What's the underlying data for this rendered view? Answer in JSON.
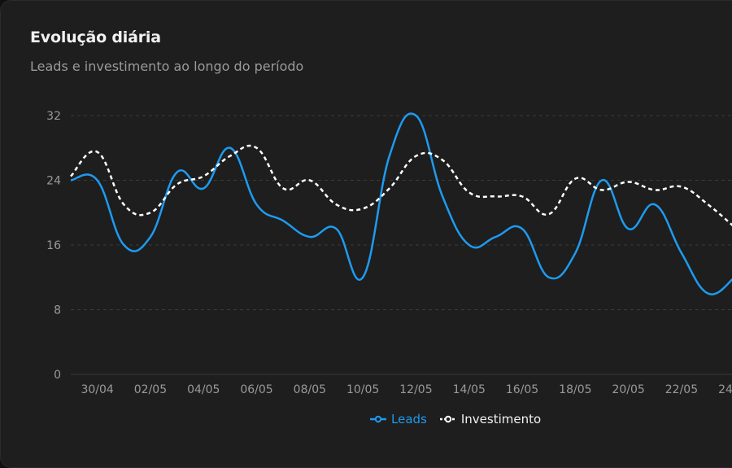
{
  "header": {
    "title": "Evolução diária",
    "subtitle": "Leads e investimento ao longo do período"
  },
  "colors": {
    "leads": "#1d9bf0",
    "investimento": "#ffffff",
    "grid": "#3a3a3a",
    "tick_text": "#9a9a9a"
  },
  "chart_data": {
    "type": "line",
    "ylim": [
      0,
      32
    ],
    "yticks": [
      "0",
      "8",
      "16",
      "24",
      "32"
    ],
    "xticks": [
      "30/04",
      "02/05",
      "04/05",
      "06/05",
      "08/05",
      "10/05",
      "12/05",
      "14/05",
      "16/05",
      "18/05",
      "20/05",
      "22/05",
      "24/05"
    ],
    "x": [
      "29/04",
      "30/04",
      "01/05",
      "02/05",
      "03/05",
      "04/05",
      "05/05",
      "06/05",
      "07/05",
      "08/05",
      "09/05",
      "10/05",
      "11/05",
      "12/05",
      "13/05",
      "14/05",
      "15/05",
      "16/05",
      "17/05",
      "18/05",
      "19/05",
      "20/05",
      "21/05",
      "22/05",
      "23/05",
      "24/05"
    ],
    "grid": "horizontal-dashed",
    "legend_position": "bottom-center",
    "series": [
      {
        "name": "Leads",
        "style": "solid",
        "values": [
          24,
          24,
          16,
          17,
          25,
          23,
          28,
          21,
          19,
          17,
          18,
          12,
          27,
          32,
          22,
          16,
          17,
          18,
          12,
          15,
          24,
          18,
          21,
          15,
          10,
          12
        ]
      },
      {
        "name": "Investimento",
        "style": "dashed",
        "values": [
          24.5,
          27.5,
          21,
          20,
          23.5,
          24.5,
          27,
          28,
          23,
          24,
          21,
          20.5,
          23,
          27,
          26.5,
          22.5,
          22,
          22,
          19.8,
          24.2,
          22.8,
          23.8,
          22.8,
          23.2,
          21,
          18.2
        ]
      }
    ]
  }
}
